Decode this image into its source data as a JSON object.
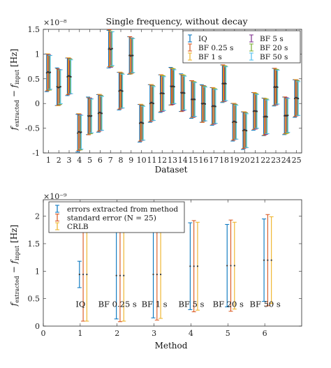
{
  "chart_data": [
    {
      "type": "errorbar",
      "title": "Single frequency, without decay",
      "xlabel": "Dataset",
      "ylabel": "f_extracted − f_input [Hz]",
      "y_exponent": "×10⁻⁸",
      "xlim": [
        0.5,
        25.5
      ],
      "ylim": [
        -1.0,
        1.5
      ],
      "yticks": [
        -1,
        -0.5,
        0,
        0.5,
        1,
        1.5
      ],
      "ytick_labels": [
        "-1",
        "-0.5",
        "0",
        "0.5",
        "1",
        "1.5"
      ],
      "categories": [
        "1",
        "2",
        "3",
        "4",
        "5",
        "6",
        "7",
        "8",
        "9",
        "10",
        "11",
        "12",
        "13",
        "14",
        "15",
        "16",
        "17",
        "18",
        "19",
        "20",
        "21",
        "22",
        "23",
        "24",
        "25"
      ],
      "legend": {
        "position": "top-right",
        "entries": [
          "IQ",
          "BF 0.25 s",
          "BF 1 s",
          "BF 5 s",
          "BF 20 s",
          "BF 50 s"
        ]
      },
      "halfwidth": 0.38,
      "colors": [
        "#0072BD",
        "#D95319",
        "#EDB120",
        "#7E2F8E",
        "#77AC30",
        "#4DBEEE"
      ],
      "series": [
        {
          "name": "IQ",
          "values": [
            0.62,
            0.34,
            0.54,
            -0.6,
            -0.25,
            -0.2,
            1.1,
            0.25,
            0.97,
            -0.4,
            0.0,
            0.2,
            0.35,
            0.22,
            0.08,
            0.0,
            -0.06,
            0.4,
            -0.38,
            -0.55,
            -0.16,
            -0.27,
            0.33,
            -0.25,
            0.1
          ]
        },
        {
          "name": "BF 0.25 s",
          "values": [
            0.63,
            0.33,
            0.55,
            -0.58,
            -0.26,
            -0.19,
            1.12,
            0.26,
            0.98,
            -0.39,
            0.01,
            0.21,
            0.34,
            0.21,
            0.09,
            -0.01,
            -0.05,
            0.41,
            -0.37,
            -0.54,
            -0.15,
            -0.27,
            0.34,
            -0.24,
            0.11
          ]
        },
        {
          "name": "BF 1 s",
          "values": [
            0.64,
            0.32,
            0.56,
            -0.57,
            -0.25,
            -0.18,
            1.1,
            0.27,
            0.96,
            -0.38,
            0.02,
            0.21,
            0.35,
            0.22,
            0.08,
            0.0,
            -0.05,
            0.4,
            -0.36,
            -0.53,
            -0.15,
            -0.26,
            0.33,
            -0.25,
            0.12
          ]
        },
        {
          "name": "BF 5 s",
          "values": [
            0.63,
            0.33,
            0.55,
            -0.58,
            -0.25,
            -0.19,
            1.09,
            0.26,
            0.97,
            -0.39,
            0.01,
            0.2,
            0.34,
            0.21,
            0.08,
            0.0,
            -0.06,
            0.4,
            -0.37,
            -0.54,
            -0.16,
            -0.27,
            0.33,
            -0.24,
            0.11
          ]
        },
        {
          "name": "BF 20 s",
          "values": [
            0.62,
            0.33,
            0.55,
            -0.59,
            -0.26,
            -0.19,
            1.1,
            0.26,
            0.97,
            -0.39,
            0.01,
            0.21,
            0.35,
            0.22,
            0.09,
            0.0,
            -0.05,
            0.41,
            -0.37,
            -0.54,
            -0.15,
            -0.26,
            0.34,
            -0.25,
            0.11
          ]
        },
        {
          "name": "BF 50 s",
          "values": [
            0.63,
            0.34,
            0.54,
            -0.58,
            -0.25,
            -0.2,
            1.11,
            0.25,
            0.97,
            -0.4,
            0.0,
            0.2,
            0.34,
            0.21,
            0.08,
            -0.01,
            -0.06,
            0.4,
            -0.38,
            -0.55,
            -0.16,
            -0.27,
            0.33,
            -0.24,
            0.1
          ]
        }
      ]
    },
    {
      "type": "errorbar",
      "title": "",
      "xlabel": "Method",
      "ylabel": "f_extracted − f_input [Hz]",
      "y_exponent": "×10⁻⁹",
      "xlim": [
        0,
        7
      ],
      "ylim": [
        0,
        2.3
      ],
      "xticks": [
        0,
        1,
        2,
        3,
        4,
        5,
        6
      ],
      "yticks": [
        0,
        0.5,
        1,
        1.5,
        2
      ],
      "ytick_labels": [
        "0",
        "0.5",
        "1",
        "1.5",
        "2"
      ],
      "legend": {
        "position": "top-left",
        "entries": [
          "errors extracted from method",
          "standard error (N = 25)",
          "CRLB"
        ]
      },
      "categories": [
        "IQ",
        "BF 0.25 s",
        "BF 1 s",
        "BF 5 s",
        "BF 20 s",
        "BF 50 s"
      ],
      "annotation_offset": 0.0,
      "colors": [
        "#0072BD",
        "#D95319",
        "#EDB120"
      ],
      "series": [
        {
          "name": "errors extracted from method",
          "x": [
            0.98,
            1.98,
            2.98,
            3.98,
            4.98,
            5.98
          ],
          "y": [
            0.94,
            0.92,
            0.94,
            1.09,
            1.1,
            1.2
          ],
          "err": [
            0.24,
            0.79,
            0.79,
            0.79,
            0.75,
            0.75
          ]
        },
        {
          "name": "standard error (N = 25)",
          "x": [
            1.08,
            2.08,
            3.08,
            4.08,
            5.08,
            6.08
          ],
          "y": [
            0.94,
            0.92,
            0.94,
            1.09,
            1.1,
            1.2
          ],
          "err": [
            0.85,
            0.84,
            0.83,
            0.83,
            0.83,
            0.83
          ]
        },
        {
          "name": "CRLB",
          "x": [
            1.18,
            2.18,
            3.18,
            4.18,
            5.18,
            6.18
          ],
          "y": [
            0.94,
            0.92,
            0.94,
            1.09,
            1.1,
            1.2
          ],
          "err": [
            0.85,
            0.83,
            0.8,
            0.8,
            0.79,
            0.79
          ]
        }
      ]
    }
  ]
}
